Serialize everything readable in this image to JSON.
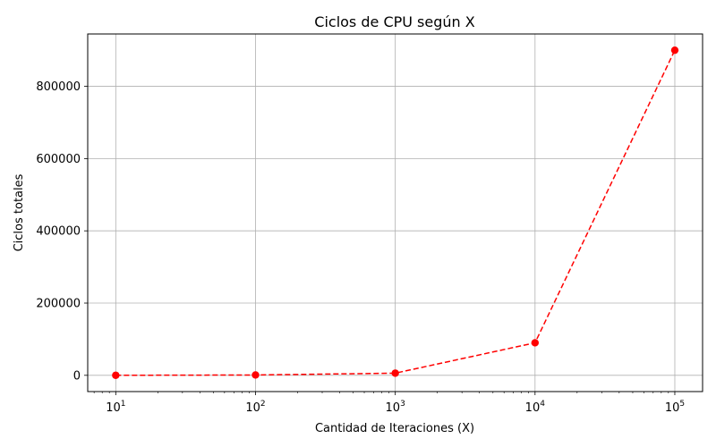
{
  "chart_data": {
    "type": "line",
    "title": "Ciclos de CPU según X",
    "xlabel": "Cantidad de Iteraciones (X)",
    "ylabel": "Ciclos totales",
    "x_scale": "log",
    "x": [
      10,
      100,
      1000,
      10000,
      100000
    ],
    "series": [
      {
        "values": [
          90,
          900,
          6000,
          90000,
          900000
        ],
        "color": "#ff0000",
        "line_style": "dashed",
        "marker": "circle"
      }
    ],
    "xlim": [
      6.3,
      158000
    ],
    "ylim": [
      -45000,
      945000
    ],
    "x_ticks": [
      {
        "value": 10,
        "base": "10",
        "exp": "1"
      },
      {
        "value": 100,
        "base": "10",
        "exp": "2"
      },
      {
        "value": 1000,
        "base": "10",
        "exp": "3"
      },
      {
        "value": 10000,
        "base": "10",
        "exp": "4"
      },
      {
        "value": 100000,
        "base": "10",
        "exp": "5"
      }
    ],
    "y_ticks": [
      {
        "value": 0,
        "label": "0"
      },
      {
        "value": 200000,
        "label": "200000"
      },
      {
        "value": 400000,
        "label": "400000"
      },
      {
        "value": 600000,
        "label": "600000"
      },
      {
        "value": 800000,
        "label": "800000"
      }
    ],
    "grid": true,
    "frame_color": "#000000",
    "grid_color": "#b0b0b0"
  }
}
